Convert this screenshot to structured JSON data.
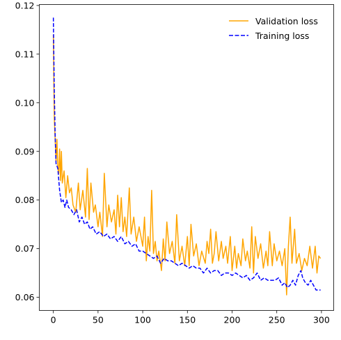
{
  "chart_data": {
    "type": "line",
    "title": "",
    "xlabel": "",
    "ylabel": "",
    "xlim": [
      -15.7,
      313.7
    ],
    "ylim": [
      0.0573,
      0.1202
    ],
    "xticks": [
      0,
      50,
      100,
      150,
      200,
      250,
      300
    ],
    "yticks": [
      0.06,
      0.07,
      0.08,
      0.09,
      0.1,
      0.11,
      0.12
    ],
    "ytick_labels": [
      "0.06",
      "0.07",
      "0.08",
      "0.09",
      "0.10",
      "0.11",
      "0.12"
    ],
    "grid": false,
    "legend_position": "upper right",
    "series": [
      {
        "name": "Validation loss",
        "color": "#ffa500",
        "linestyle": "solid",
        "anchors": [
          [
            0,
            0.114
          ],
          [
            1,
            0.097
          ],
          [
            2,
            0.0925
          ],
          [
            3,
            0.088
          ],
          [
            4,
            0.0925
          ],
          [
            5,
            0.0865
          ],
          [
            6,
            0.0855
          ],
          [
            7,
            0.0905
          ],
          [
            8,
            0.084
          ],
          [
            9,
            0.09
          ],
          [
            10,
            0.0835
          ],
          [
            12,
            0.086
          ],
          [
            14,
            0.0805
          ],
          [
            16,
            0.085
          ],
          [
            18,
            0.0815
          ],
          [
            20,
            0.0825
          ],
          [
            22,
            0.079
          ],
          [
            25,
            0.0775
          ],
          [
            28,
            0.0835
          ],
          [
            30,
            0.078
          ],
          [
            33,
            0.082
          ],
          [
            36,
            0.0765
          ],
          [
            38,
            0.0865
          ],
          [
            40,
            0.076
          ],
          [
            42,
            0.0835
          ],
          [
            45,
            0.0775
          ],
          [
            47,
            0.079
          ],
          [
            50,
            0.0745
          ],
          [
            52,
            0.0775
          ],
          [
            55,
            0.0725
          ],
          [
            57,
            0.0855
          ],
          [
            60,
            0.0745
          ],
          [
            62,
            0.079
          ],
          [
            65,
            0.0755
          ],
          [
            68,
            0.078
          ],
          [
            70,
            0.073
          ],
          [
            72,
            0.081
          ],
          [
            74,
            0.0745
          ],
          [
            76,
            0.0805
          ],
          [
            78,
            0.0735
          ],
          [
            80,
            0.0765
          ],
          [
            82,
            0.0725
          ],
          [
            85,
            0.0825
          ],
          [
            87,
            0.073
          ],
          [
            90,
            0.0765
          ],
          [
            93,
            0.0715
          ],
          [
            96,
            0.0745
          ],
          [
            100,
            0.0705
          ],
          [
            102,
            0.0765
          ],
          [
            104,
            0.0675
          ],
          [
            106,
            0.0725
          ],
          [
            108,
            0.0695
          ],
          [
            110,
            0.082
          ],
          [
            112,
            0.069
          ],
          [
            114,
            0.0715
          ],
          [
            116,
            0.0675
          ],
          [
            118,
            0.0695
          ],
          [
            121,
            0.0655
          ],
          [
            123,
            0.072
          ],
          [
            125,
            0.0675
          ],
          [
            127,
            0.0755
          ],
          [
            130,
            0.069
          ],
          [
            133,
            0.0715
          ],
          [
            136,
            0.067
          ],
          [
            138,
            0.077
          ],
          [
            141,
            0.0675
          ],
          [
            144,
            0.0705
          ],
          [
            147,
            0.0665
          ],
          [
            150,
            0.0725
          ],
          [
            152,
            0.0665
          ],
          [
            154,
            0.075
          ],
          [
            157,
            0.0685
          ],
          [
            160,
            0.071
          ],
          [
            163,
            0.0665
          ],
          [
            166,
            0.0695
          ],
          [
            170,
            0.067
          ],
          [
            172,
            0.0715
          ],
          [
            174,
            0.069
          ],
          [
            176,
            0.074
          ],
          [
            178,
            0.067
          ],
          [
            180,
            0.069
          ],
          [
            182,
            0.0735
          ],
          [
            185,
            0.0675
          ],
          [
            188,
            0.0715
          ],
          [
            190,
            0.068
          ],
          [
            193,
            0.0705
          ],
          [
            195,
            0.067
          ],
          [
            198,
            0.0725
          ],
          [
            200,
            0.0655
          ],
          [
            203,
            0.0705
          ],
          [
            205,
            0.066
          ],
          [
            207,
            0.069
          ],
          [
            210,
            0.0665
          ],
          [
            212,
            0.072
          ],
          [
            215,
            0.0675
          ],
          [
            217,
            0.0695
          ],
          [
            220,
            0.066
          ],
          [
            222,
            0.0745
          ],
          [
            224,
            0.065
          ],
          [
            226,
            0.0725
          ],
          [
            229,
            0.068
          ],
          [
            232,
            0.071
          ],
          [
            235,
            0.066
          ],
          [
            238,
            0.0695
          ],
          [
            240,
            0.0665
          ],
          [
            242,
            0.0735
          ],
          [
            245,
            0.0665
          ],
          [
            247,
            0.071
          ],
          [
            250,
            0.0675
          ],
          [
            253,
            0.0695
          ],
          [
            256,
            0.0665
          ],
          [
            259,
            0.07
          ],
          [
            261,
            0.0605
          ],
          [
            263,
            0.0705
          ],
          [
            265,
            0.0765
          ],
          [
            267,
            0.067
          ],
          [
            270,
            0.074
          ],
          [
            272,
            0.067
          ],
          [
            275,
            0.069
          ],
          [
            278,
            0.0655
          ],
          [
            281,
            0.068
          ],
          [
            284,
            0.0665
          ],
          [
            287,
            0.0705
          ],
          [
            290,
            0.066
          ],
          [
            293,
            0.0705
          ],
          [
            295,
            0.065
          ],
          [
            297,
            0.0685
          ],
          [
            299,
            0.068
          ]
        ]
      },
      {
        "name": "Training loss",
        "color": "#0000ff",
        "linestyle": "dashed",
        "anchors": [
          [
            0,
            0.1175
          ],
          [
            1,
            0.103
          ],
          [
            2,
            0.0935
          ],
          [
            3,
            0.0875
          ],
          [
            5,
            0.0865
          ],
          [
            7,
            0.082
          ],
          [
            9,
            0.0795
          ],
          [
            11,
            0.08
          ],
          [
            13,
            0.0785
          ],
          [
            15,
            0.08
          ],
          [
            17,
            0.0785
          ],
          [
            20,
            0.078
          ],
          [
            23,
            0.077
          ],
          [
            26,
            0.078
          ],
          [
            29,
            0.0755
          ],
          [
            32,
            0.0765
          ],
          [
            35,
            0.075
          ],
          [
            38,
            0.0755
          ],
          [
            41,
            0.074
          ],
          [
            44,
            0.0745
          ],
          [
            48,
            0.073
          ],
          [
            52,
            0.0735
          ],
          [
            56,
            0.0725
          ],
          [
            60,
            0.073
          ],
          [
            64,
            0.072
          ],
          [
            68,
            0.0725
          ],
          [
            72,
            0.0715
          ],
          [
            76,
            0.0725
          ],
          [
            80,
            0.071
          ],
          [
            84,
            0.0715
          ],
          [
            88,
            0.0705
          ],
          [
            92,
            0.071
          ],
          [
            96,
            0.0695
          ],
          [
            100,
            0.0695
          ],
          [
            104,
            0.069
          ],
          [
            108,
            0.0685
          ],
          [
            112,
            0.068
          ],
          [
            116,
            0.0685
          ],
          [
            120,
            0.067
          ],
          [
            124,
            0.068
          ],
          [
            128,
            0.0675
          ],
          [
            132,
            0.0675
          ],
          [
            136,
            0.067
          ],
          [
            140,
            0.0665
          ],
          [
            144,
            0.067
          ],
          [
            148,
            0.0665
          ],
          [
            152,
            0.066
          ],
          [
            156,
            0.0665
          ],
          [
            160,
            0.066
          ],
          [
            164,
            0.066
          ],
          [
            168,
            0.065
          ],
          [
            172,
            0.066
          ],
          [
            176,
            0.065
          ],
          [
            180,
            0.0655
          ],
          [
            184,
            0.0655
          ],
          [
            188,
            0.0645
          ],
          [
            192,
            0.065
          ],
          [
            196,
            0.065
          ],
          [
            200,
            0.0645
          ],
          [
            204,
            0.065
          ],
          [
            208,
            0.0645
          ],
          [
            212,
            0.064
          ],
          [
            216,
            0.0645
          ],
          [
            220,
            0.0635
          ],
          [
            224,
            0.064
          ],
          [
            228,
            0.065
          ],
          [
            232,
            0.0635
          ],
          [
            236,
            0.064
          ],
          [
            240,
            0.0635
          ],
          [
            244,
            0.0635
          ],
          [
            248,
            0.0635
          ],
          [
            252,
            0.064
          ],
          [
            256,
            0.0625
          ],
          [
            259,
            0.063
          ],
          [
            262,
            0.062
          ],
          [
            265,
            0.0625
          ],
          [
            268,
            0.0635
          ],
          [
            271,
            0.0625
          ],
          [
            274,
            0.0645
          ],
          [
            277,
            0.0655
          ],
          [
            279,
            0.064
          ],
          [
            282,
            0.063
          ],
          [
            285,
            0.0625
          ],
          [
            288,
            0.0635
          ],
          [
            291,
            0.0625
          ],
          [
            294,
            0.0615
          ],
          [
            297,
            0.0615
          ],
          [
            299,
            0.0615
          ]
        ]
      }
    ]
  }
}
